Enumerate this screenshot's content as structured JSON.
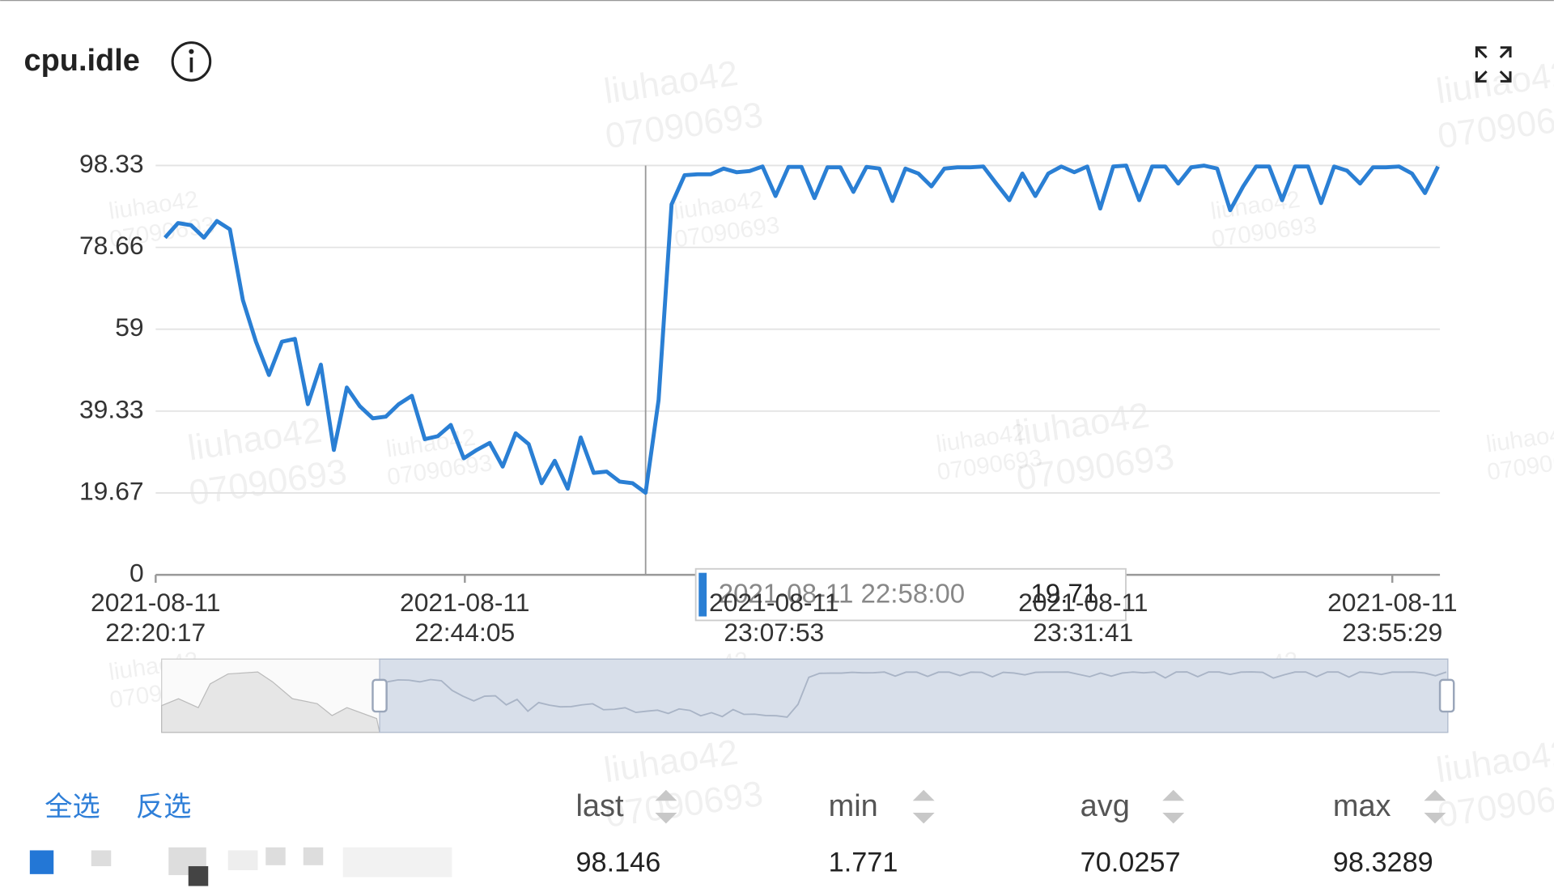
{
  "panel": {
    "title": "cpu.idle"
  },
  "chart_data": {
    "type": "line",
    "color": "#2a7fd4",
    "x": [
      "2021-08-11 22:21:00",
      "2021-08-11 22:22:00",
      "2021-08-11 22:23:00",
      "2021-08-11 22:24:00",
      "2021-08-11 22:25:00",
      "2021-08-11 22:26:00",
      "2021-08-11 22:27:00",
      "2021-08-11 22:28:00",
      "2021-08-11 22:29:00",
      "2021-08-11 22:30:00",
      "2021-08-11 22:31:00",
      "2021-08-11 22:32:00",
      "2021-08-11 22:33:00",
      "2021-08-11 22:34:00",
      "2021-08-11 22:35:00",
      "2021-08-11 22:36:00",
      "2021-08-11 22:37:00",
      "2021-08-11 22:38:00",
      "2021-08-11 22:39:00",
      "2021-08-11 22:40:00",
      "2021-08-11 22:41:00",
      "2021-08-11 22:42:00",
      "2021-08-11 22:43:00",
      "2021-08-11 22:44:00",
      "2021-08-11 22:45:00",
      "2021-08-11 22:46:00",
      "2021-08-11 22:47:00",
      "2021-08-11 22:48:00",
      "2021-08-11 22:49:00",
      "2021-08-11 22:50:00",
      "2021-08-11 22:51:00",
      "2021-08-11 22:52:00",
      "2021-08-11 22:53:00",
      "2021-08-11 22:54:00",
      "2021-08-11 22:55:00",
      "2021-08-11 22:56:00",
      "2021-08-11 22:57:00",
      "2021-08-11 22:58:00",
      "2021-08-11 22:59:00",
      "2021-08-11 23:00:00",
      "2021-08-11 23:01:00",
      "2021-08-11 23:02:00",
      "2021-08-11 23:03:00",
      "2021-08-11 23:04:00",
      "2021-08-11 23:05:00",
      "2021-08-11 23:06:00",
      "2021-08-11 23:07:00",
      "2021-08-11 23:08:00",
      "2021-08-11 23:09:00",
      "2021-08-11 23:10:00",
      "2021-08-11 23:11:00",
      "2021-08-11 23:12:00",
      "2021-08-11 23:13:00",
      "2021-08-11 23:14:00",
      "2021-08-11 23:15:00",
      "2021-08-11 23:16:00",
      "2021-08-11 23:17:00",
      "2021-08-11 23:18:00",
      "2021-08-11 23:19:00",
      "2021-08-11 23:20:00",
      "2021-08-11 23:21:00",
      "2021-08-11 23:22:00",
      "2021-08-11 23:23:00",
      "2021-08-11 23:24:00",
      "2021-08-11 23:25:00",
      "2021-08-11 23:26:00",
      "2021-08-11 23:27:00",
      "2021-08-11 23:28:00",
      "2021-08-11 23:29:00",
      "2021-08-11 23:30:00",
      "2021-08-11 23:31:00",
      "2021-08-11 23:32:00",
      "2021-08-11 23:33:00",
      "2021-08-11 23:34:00",
      "2021-08-11 23:35:00",
      "2021-08-11 23:36:00",
      "2021-08-11 23:37:00",
      "2021-08-11 23:38:00",
      "2021-08-11 23:39:00",
      "2021-08-11 23:40:00",
      "2021-08-11 23:41:00",
      "2021-08-11 23:42:00",
      "2021-08-11 23:43:00",
      "2021-08-11 23:44:00",
      "2021-08-11 23:45:00",
      "2021-08-11 23:46:00",
      "2021-08-11 23:47:00",
      "2021-08-11 23:48:00",
      "2021-08-11 23:49:00",
      "2021-08-11 23:50:00",
      "2021-08-11 23:51:00",
      "2021-08-11 23:52:00",
      "2021-08-11 23:53:00",
      "2021-08-11 23:54:00",
      "2021-08-11 23:55:00",
      "2021-08-11 23:56:00",
      "2021-08-11 23:57:00",
      "2021-08-11 23:58:00",
      "2021-08-11 23:59:00"
    ],
    "values": [
      81,
      84.5,
      84,
      81,
      85,
      83,
      66,
      56,
      48,
      56,
      56.7,
      41,
      50.5,
      30,
      45,
      40.5,
      37.6,
      38,
      41,
      43,
      32.6,
      33.3,
      36,
      28,
      30,
      31.7,
      26,
      34,
      31.4,
      22,
      27.4,
      20.7,
      33,
      24.5,
      24.8,
      22.4,
      22,
      19.71,
      42,
      89,
      96,
      96.2,
      96.2,
      97.6,
      96.7,
      97,
      98.1,
      91,
      98,
      98,
      90.5,
      97.9,
      97.9,
      92,
      98,
      97.6,
      89.8,
      97.6,
      96.4,
      93.3,
      97.6,
      97.9,
      97.9,
      98.1,
      94,
      90,
      96.4,
      91,
      96.4,
      98.1,
      96.7,
      98.1,
      88,
      98.1,
      98.3,
      90,
      98.1,
      98.1,
      94,
      97.9,
      98.3,
      97.6,
      87.6,
      93.3,
      98.1,
      98.1,
      90,
      98.1,
      98.1,
      89.3,
      98.1,
      97.1,
      94,
      97.9,
      97.9,
      98.1,
      96.4,
      91.7,
      98.1
    ],
    "xlim": [
      "2021-08-11 22:20:17",
      "2021-08-11 23:59:09"
    ],
    "xticks": [
      "2021-08-11 22:20:17",
      "2021-08-11 22:44:05",
      "2021-08-11 23:07:53",
      "2021-08-11 23:31:41",
      "2021-08-11 23:55:29"
    ],
    "ylim": [
      0,
      98.33
    ],
    "yticks": [
      0,
      19.67,
      39.33,
      59,
      78.66,
      98.33
    ],
    "grid": true
  },
  "legend_table": {
    "select_all": "全选",
    "invert": "反选",
    "columns": [
      "last",
      "min",
      "avg",
      "max"
    ],
    "rows": [
      {
        "values": [
          "98.146",
          "1.771",
          "70.0257",
          "98.3289"
        ]
      }
    ]
  },
  "watermark": {
    "name": "liuhao42",
    "id": "07090693"
  }
}
